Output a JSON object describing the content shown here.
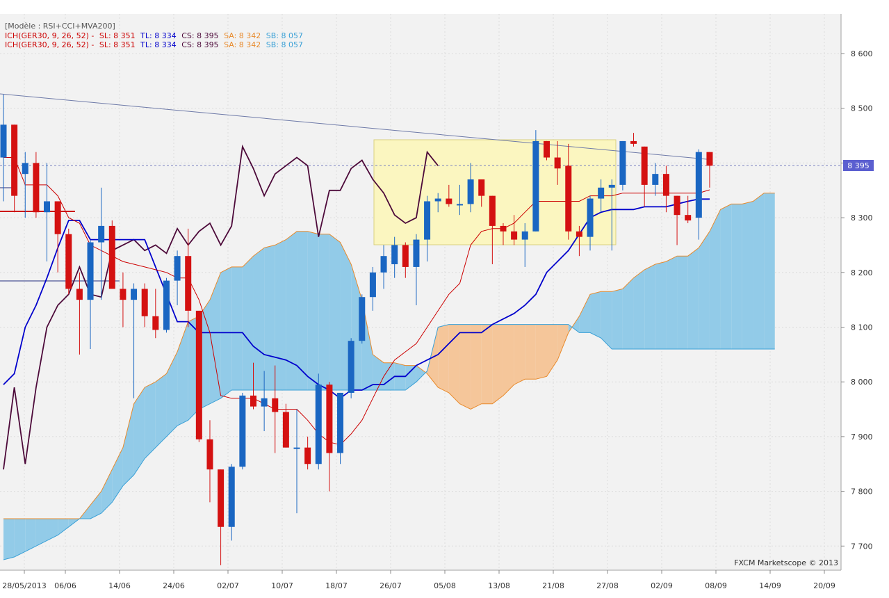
{
  "header": {
    "model": "[Modèle : RSI+CCI+MVA200]",
    "legend_lines": [
      {
        "prefix": "ICH(GER30, 9, 26, 52) -",
        "sl": "SL: 8 351",
        "tl": "TL: 8 334",
        "cs": "CS: 8 395",
        "sa": "SA: 8 342",
        "sb": "SB: 8 057"
      },
      {
        "prefix": "ICH(GER30, 9, 26, 52) -",
        "sl": "SL: 8 351",
        "tl": "TL: 8 334",
        "cs": "CS: 8 395",
        "sa": "SA: 8 342",
        "sb": "SB: 8 057"
      }
    ]
  },
  "watermark": "FXCM Marketscope © 2013",
  "colors": {
    "up": "#1a66c2",
    "down": "#d41111",
    "sl": "#cc0000",
    "tl": "#0000cc",
    "cs": "#4d0a3a",
    "sa": "#e88a2c",
    "sb": "#3aa0d6",
    "kumo_bull": "#92cbe8",
    "kumo_bear": "#f5c69a",
    "highlight_box": "#fbf6c0"
  },
  "chart_data": {
    "type": "candlestick",
    "symbol": "GER30",
    "indicator": "ICH(GER30, 9, 26, 52)",
    "current_price_label": "8 395",
    "ylim": [
      7650,
      8690
    ],
    "y_ticks": [
      "8 600",
      "8 500",
      "8 400",
      "8 300",
      "8 200",
      "8 100",
      "8 000",
      "7 900",
      "7 800",
      "7 700"
    ],
    "x_ticks": [
      "28/05/2013",
      "06/06",
      "14/06",
      "24/06",
      "02/07",
      "10/07",
      "18/07",
      "26/07",
      "05/08",
      "13/08",
      "21/08",
      "27/08",
      "02/09",
      "08/09",
      "14/09",
      "20/09"
    ],
    "candles": [
      {
        "o": 8410,
        "h": 8525,
        "l": 8330,
        "c": 8470
      },
      {
        "o": 8470,
        "h": 8470,
        "l": 8310,
        "c": 8340
      },
      {
        "o": 8380,
        "h": 8420,
        "l": 8300,
        "c": 8400
      },
      {
        "o": 8400,
        "h": 8420,
        "l": 8300,
        "c": 8310
      },
      {
        "o": 8310,
        "h": 8400,
        "l": 8220,
        "c": 8330
      },
      {
        "o": 8330,
        "h": 8330,
        "l": 8200,
        "c": 8270
      },
      {
        "o": 8270,
        "h": 8280,
        "l": 8160,
        "c": 8170
      },
      {
        "o": 8170,
        "h": 8200,
        "l": 8050,
        "c": 8150
      },
      {
        "o": 8150,
        "h": 8260,
        "l": 8060,
        "c": 8255
      },
      {
        "o": 8255,
        "h": 8355,
        "l": 8150,
        "c": 8285
      },
      {
        "o": 8285,
        "h": 8295,
        "l": 8180,
        "c": 8170
      },
      {
        "o": 8170,
        "h": 8200,
        "l": 8100,
        "c": 8150
      },
      {
        "o": 8150,
        "h": 8180,
        "l": 7970,
        "c": 8170
      },
      {
        "o": 8170,
        "h": 8180,
        "l": 8100,
        "c": 8120
      },
      {
        "o": 8120,
        "h": 8170,
        "l": 8080,
        "c": 8095
      },
      {
        "o": 8095,
        "h": 8190,
        "l": 8090,
        "c": 8185
      },
      {
        "o": 8185,
        "h": 8240,
        "l": 8140,
        "c": 8230
      },
      {
        "o": 8230,
        "h": 8280,
        "l": 8100,
        "c": 8130
      },
      {
        "o": 8130,
        "h": 8130,
        "l": 7890,
        "c": 7895
      },
      {
        "o": 7895,
        "h": 7930,
        "l": 7780,
        "c": 7840
      },
      {
        "o": 7840,
        "h": 7840,
        "l": 7665,
        "c": 7735
      },
      {
        "o": 7735,
        "h": 7850,
        "l": 7710,
        "c": 7845
      },
      {
        "o": 7845,
        "h": 7980,
        "l": 7840,
        "c": 7975
      },
      {
        "o": 7975,
        "h": 8035,
        "l": 7950,
        "c": 7955
      },
      {
        "o": 7955,
        "h": 8020,
        "l": 7910,
        "c": 7970
      },
      {
        "o": 7970,
        "h": 8030,
        "l": 7870,
        "c": 7945
      },
      {
        "o": 7945,
        "h": 7960,
        "l": 7880,
        "c": 7880
      },
      {
        "o": 7880,
        "h": 7950,
        "l": 7760,
        "c": 7880
      },
      {
        "o": 7880,
        "h": 7900,
        "l": 7840,
        "c": 7850
      },
      {
        "o": 7850,
        "h": 8015,
        "l": 7840,
        "c": 7995
      },
      {
        "o": 7995,
        "h": 8000,
        "l": 7800,
        "c": 7870
      },
      {
        "o": 7870,
        "h": 7980,
        "l": 7850,
        "c": 7980
      },
      {
        "o": 7980,
        "h": 8080,
        "l": 7970,
        "c": 8075
      },
      {
        "o": 8075,
        "h": 8160,
        "l": 8070,
        "c": 8155
      },
      {
        "o": 8155,
        "h": 8210,
        "l": 8130,
        "c": 8200
      },
      {
        "o": 8200,
        "h": 8250,
        "l": 8170,
        "c": 8230
      },
      {
        "o": 8215,
        "h": 8265,
        "l": 8190,
        "c": 8250
      },
      {
        "o": 8250,
        "h": 8255,
        "l": 8190,
        "c": 8210
      },
      {
        "o": 8210,
        "h": 8270,
        "l": 8140,
        "c": 8260
      },
      {
        "o": 8260,
        "h": 8340,
        "l": 8220,
        "c": 8330
      },
      {
        "o": 8330,
        "h": 8345,
        "l": 8310,
        "c": 8335
      },
      {
        "o": 8335,
        "h": 8360,
        "l": 8320,
        "c": 8325
      },
      {
        "o": 8325,
        "h": 8360,
        "l": 8305,
        "c": 8325
      },
      {
        "o": 8325,
        "h": 8400,
        "l": 8310,
        "c": 8370
      },
      {
        "o": 8370,
        "h": 8370,
        "l": 8320,
        "c": 8340
      },
      {
        "o": 8340,
        "h": 8340,
        "l": 8215,
        "c": 8285
      },
      {
        "o": 8285,
        "h": 8290,
        "l": 8250,
        "c": 8275
      },
      {
        "o": 8275,
        "h": 8305,
        "l": 8250,
        "c": 8260
      },
      {
        "o": 8260,
        "h": 8290,
        "l": 8210,
        "c": 8275
      },
      {
        "o": 8275,
        "h": 8460,
        "l": 8275,
        "c": 8440
      },
      {
        "o": 8440,
        "h": 8440,
        "l": 8405,
        "c": 8410
      },
      {
        "o": 8410,
        "h": 8440,
        "l": 8360,
        "c": 8390
      },
      {
        "o": 8395,
        "h": 8435,
        "l": 8260,
        "c": 8275
      },
      {
        "o": 8275,
        "h": 8285,
        "l": 8230,
        "c": 8265
      },
      {
        "o": 8265,
        "h": 8340,
        "l": 8240,
        "c": 8335
      },
      {
        "o": 8335,
        "h": 8370,
        "l": 8310,
        "c": 8355
      },
      {
        "o": 8355,
        "h": 8370,
        "l": 8240,
        "c": 8360
      },
      {
        "o": 8360,
        "h": 8440,
        "l": 8350,
        "c": 8440
      },
      {
        "o": 8440,
        "h": 8455,
        "l": 8430,
        "c": 8435
      },
      {
        "o": 8430,
        "h": 8430,
        "l": 8320,
        "c": 8360
      },
      {
        "o": 8360,
        "h": 8400,
        "l": 8340,
        "c": 8380
      },
      {
        "o": 8380,
        "h": 8395,
        "l": 8310,
        "c": 8340
      },
      {
        "o": 8340,
        "h": 8340,
        "l": 8250,
        "c": 8305
      },
      {
        "o": 8305,
        "h": 8340,
        "l": 8290,
        "c": 8295
      },
      {
        "o": 8300,
        "h": 8425,
        "l": 8260,
        "c": 8420
      },
      {
        "o": 8420,
        "h": 8420,
        "l": 8355,
        "c": 8395
      }
    ],
    "tenkan_sl": [
      8410,
      8410,
      8360,
      8360,
      8360,
      8340,
      8300,
      8290,
      8250,
      8240,
      8230,
      8220,
      8215,
      8210,
      8205,
      8200,
      8190,
      8190,
      8150,
      8090,
      7975,
      7970,
      7970,
      7970,
      7960,
      7950,
      7950,
      7950,
      7930,
      7905,
      7890,
      7885,
      7905,
      7930,
      7970,
      8010,
      8040,
      8055,
      8070,
      8100,
      8130,
      8160,
      8180,
      8250,
      8275,
      8280,
      8280,
      8290,
      8310,
      8330,
      8330,
      8330,
      8330,
      8330,
      8340,
      8340,
      8340,
      8345,
      8345,
      8345,
      8345,
      8345,
      8345,
      8345,
      8345,
      8351
    ],
    "kijun_tl": [
      7995,
      8015,
      8100,
      8140,
      8190,
      8245,
      8295,
      8295,
      8260,
      8260,
      8260,
      8260,
      8260,
      8260,
      8210,
      8160,
      8110,
      8110,
      8090,
      8090,
      8090,
      8090,
      8090,
      8065,
      8050,
      8045,
      8040,
      8030,
      8010,
      7995,
      7985,
      7970,
      7985,
      7985,
      7995,
      7995,
      8010,
      8010,
      8030,
      8040,
      8050,
      8070,
      8090,
      8090,
      8090,
      8105,
      8115,
      8125,
      8140,
      8160,
      8200,
      8220,
      8240,
      8270,
      8300,
      8310,
      8315,
      8315,
      8315,
      8320,
      8320,
      8320,
      8325,
      8330,
      8334,
      8334
    ],
    "chikou_cs": [
      7840,
      7990,
      7850,
      7990,
      8100,
      8140,
      8160,
      8210,
      8160,
      8155,
      8240,
      8250,
      8260,
      8240,
      8250,
      8235,
      8280,
      8250,
      8275,
      8290,
      8250,
      8285,
      8430,
      8390,
      8340,
      8380,
      8395,
      8410,
      8395,
      8265,
      8350,
      8350,
      8390,
      8405,
      8370,
      8345,
      8305,
      8290,
      8300,
      8420,
      8395
    ],
    "senkou_a": [
      7750,
      7750,
      7750,
      7750,
      7750,
      7750,
      7750,
      7750,
      7775,
      7800,
      7840,
      7880,
      7960,
      7990,
      8000,
      8015,
      8055,
      8110,
      8120,
      8150,
      8200,
      8210,
      8210,
      8230,
      8245,
      8250,
      8260,
      8275,
      8275,
      8270,
      8270,
      8255,
      8215,
      8150,
      8050,
      8035,
      8035,
      8030,
      8030,
      8015,
      7990,
      7980,
      7960,
      7950,
      7960,
      7960,
      7975,
      7995,
      8005,
      8005,
      8010,
      8040,
      8090,
      8120,
      8160,
      8165,
      8165,
      8170,
      8190,
      8205,
      8215,
      8220,
      8230,
      8230,
      8245,
      8275,
      8315,
      8325,
      8325,
      8330,
      8345,
      8345
    ],
    "senkou_b": [
      7675,
      7680,
      7690,
      7700,
      7710,
      7720,
      7735,
      7750,
      7750,
      7760,
      7780,
      7810,
      7830,
      7860,
      7880,
      7900,
      7920,
      7930,
      7950,
      7960,
      7970,
      7985,
      7985,
      7985,
      7985,
      7985,
      7985,
      7985,
      7985,
      7985,
      7985,
      7985,
      7985,
      7985,
      7985,
      7985,
      7985,
      7985,
      8000,
      8020,
      8100,
      8105,
      8105,
      8105,
      8105,
      8105,
      8105,
      8105,
      8105,
      8105,
      8105,
      8105,
      8105,
      8090,
      8090,
      8080,
      8060,
      8060,
      8060,
      8060,
      8060,
      8060,
      8060
    ]
  }
}
